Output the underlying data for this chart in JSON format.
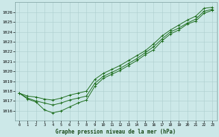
{
  "x": [
    0,
    1,
    2,
    3,
    4,
    5,
    6,
    7,
    8,
    9,
    10,
    11,
    12,
    13,
    14,
    15,
    16,
    17,
    18,
    19,
    20,
    21,
    22,
    23
  ],
  "line_upper": [
    1017.8,
    1017.5,
    1017.4,
    1017.2,
    1017.1,
    1017.3,
    1017.6,
    1017.8,
    1018.0,
    1019.2,
    1019.8,
    1020.2,
    1020.6,
    1021.1,
    1021.6,
    1022.1,
    1022.8,
    1023.6,
    1024.2,
    1024.7,
    1025.2,
    1025.6,
    1026.4,
    1026.5
  ],
  "line_mid": [
    1017.8,
    1017.3,
    1017.0,
    1016.8,
    1016.6,
    1016.8,
    1017.1,
    1017.3,
    1017.5,
    1018.8,
    1019.5,
    1019.9,
    1020.3,
    1020.8,
    1021.3,
    1021.9,
    1022.5,
    1023.3,
    1024.0,
    1024.4,
    1024.9,
    1025.3,
    1026.1,
    1026.3
  ],
  "line_low": [
    1017.8,
    1017.2,
    1016.9,
    1016.1,
    1015.8,
    1016.0,
    1016.4,
    1016.8,
    1017.1,
    1018.5,
    1019.3,
    1019.7,
    1020.1,
    1020.6,
    1021.1,
    1021.7,
    1022.2,
    1023.1,
    1023.8,
    1024.2,
    1024.8,
    1025.1,
    1025.9,
    1026.2
  ],
  "bg_color": "#cce8e8",
  "grid_color": "#aacccc",
  "line_color": "#1a6b1a",
  "title": "Graphe pression niveau de la mer (hPa)",
  "ylim_min": 1015.0,
  "ylim_max": 1027.0,
  "yticks": [
    1016,
    1017,
    1018,
    1019,
    1020,
    1021,
    1022,
    1023,
    1024,
    1025,
    1026
  ],
  "xlim_min": -0.5,
  "xlim_max": 23.5,
  "figw": 3.2,
  "figh": 2.0,
  "dpi": 100
}
